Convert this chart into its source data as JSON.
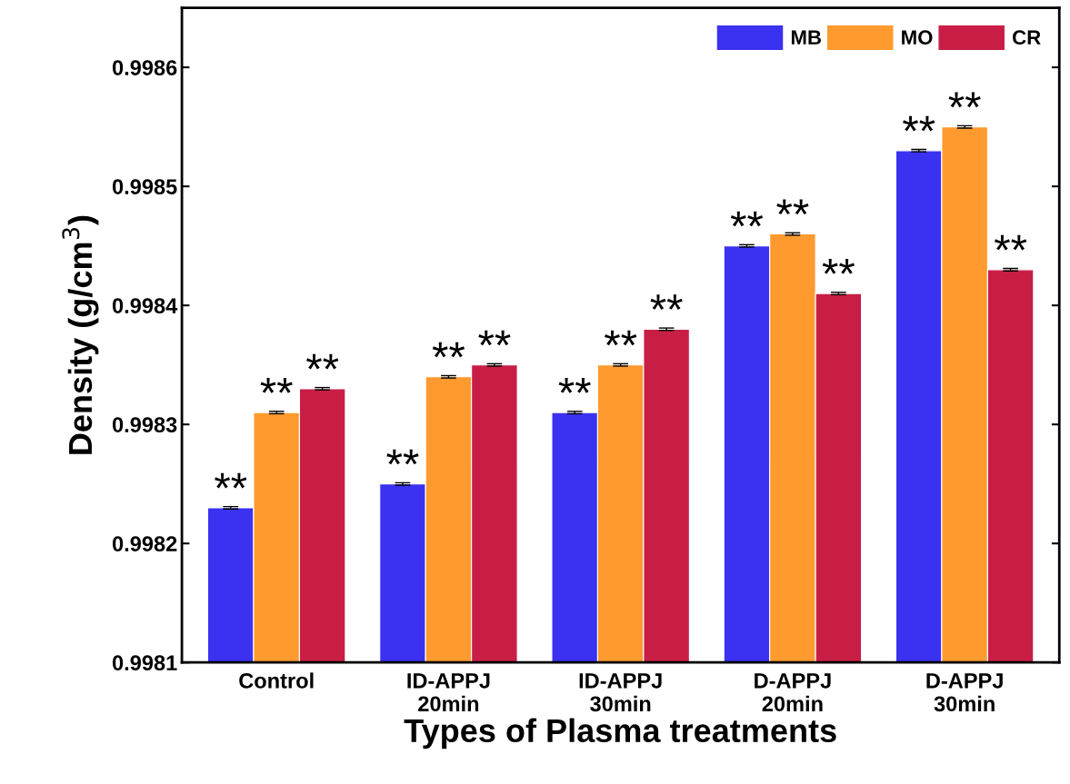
{
  "chart_data": {
    "type": "bar",
    "xlabel": "Types of Plasma treatments",
    "ylabel": "Density (g/cm$^{3}$)",
    "categories": [
      "Control",
      "ID-APPJ\n20min",
      "ID-APPJ\n30min",
      "D-APPJ\n20min",
      "D-APPJ\n30min"
    ],
    "series": [
      {
        "name": "MB",
        "color": "#3a32f0",
        "values": [
          0.99823,
          0.99825,
          0.99831,
          0.99845,
          0.99853
        ],
        "errors": [
          1e-06,
          1e-06,
          1e-06,
          1e-06,
          1e-06
        ],
        "value_labels": [
          "**",
          "**",
          "**",
          "**",
          "**"
        ]
      },
      {
        "name": "MO",
        "color": "#ff9a2e",
        "values": [
          0.99831,
          0.99834,
          0.99835,
          0.99846,
          0.99855
        ],
        "errors": [
          1e-06,
          1e-06,
          1e-06,
          1e-06,
          1e-06
        ],
        "value_labels": [
          "**",
          "**",
          "**",
          "**",
          "**"
        ]
      },
      {
        "name": "CR",
        "color": "#c81e46",
        "values": [
          0.99833,
          0.99835,
          0.99838,
          0.99841,
          0.99843
        ],
        "errors": [
          1e-06,
          1e-06,
          1e-06,
          1e-06,
          1e-06
        ],
        "value_labels": [
          "**",
          "**",
          "**",
          "**",
          "**"
        ]
      }
    ],
    "ylim": [
      0.9981,
      0.99865
    ],
    "yticks": [
      {
        "value": 0.9981,
        "label": "0.9981"
      },
      {
        "value": 0.9982,
        "label": "0.9982"
      },
      {
        "value": 0.9983,
        "label": "0.9983"
      },
      {
        "value": 0.9984,
        "label": "0.9984"
      },
      {
        "value": 0.9985,
        "label": "0.9985"
      },
      {
        "value": 0.9986,
        "label": "0.9986"
      }
    ],
    "legend": "top right",
    "grid": false
  }
}
